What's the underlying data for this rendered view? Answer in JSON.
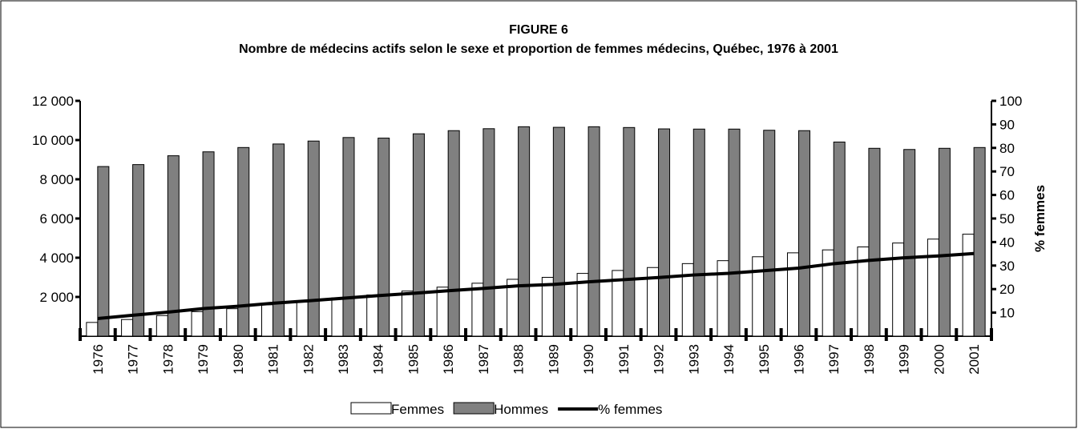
{
  "chart_data": {
    "type": "bar",
    "title": "FIGURE 6",
    "subtitle": "Nombre de médecins actifs selon le sexe et proportion de femmes médecins, Québec, 1976 à 2001",
    "y2_label": "% femmes",
    "categories": [
      "1976",
      "1977",
      "1978",
      "1979",
      "1980",
      "1981",
      "1982",
      "1983",
      "1984",
      "1985",
      "1986",
      "1987",
      "1988",
      "1989",
      "1990",
      "1991",
      "1992",
      "1993",
      "1994",
      "1995",
      "1996",
      "1997",
      "1998",
      "1999",
      "2000",
      "2001"
    ],
    "series": [
      {
        "name": "Femmes",
        "type": "bar",
        "color": "#ffffff",
        "values": [
          700,
          850,
          1050,
          1250,
          1400,
          1600,
          1750,
          1950,
          2100,
          2300,
          2500,
          2700,
          2900,
          3000,
          3200,
          3350,
          3500,
          3700,
          3850,
          4050,
          4250,
          4400,
          4550,
          4750,
          4950,
          5200
        ]
      },
      {
        "name": "Hommes",
        "type": "bar",
        "color": "#808080",
        "values": [
          8650,
          8750,
          9200,
          9400,
          9620,
          9800,
          9950,
          10130,
          10100,
          10320,
          10480,
          10580,
          10680,
          10650,
          10680,
          10640,
          10570,
          10560,
          10560,
          10500,
          10480,
          9900,
          9580,
          9520,
          9580,
          9620
        ]
      },
      {
        "name": "% femmes",
        "type": "line",
        "axis": "y2",
        "color": "#000000",
        "values": [
          7.5,
          8.9,
          10.2,
          11.7,
          12.7,
          14.0,
          15.0,
          16.1,
          17.2,
          18.2,
          19.3,
          20.3,
          21.4,
          22.0,
          23.1,
          24.0,
          24.9,
          26.0,
          26.7,
          27.8,
          28.9,
          30.8,
          32.2,
          33.3,
          34.1,
          35.1
        ]
      }
    ],
    "ylim": [
      0,
      12000
    ],
    "yticks": [
      {
        "value": 2000,
        "label": "2 000"
      },
      {
        "value": 4000,
        "label": "4 000"
      },
      {
        "value": 6000,
        "label": "6 000"
      },
      {
        "value": 8000,
        "label": "8 000"
      },
      {
        "value": 10000,
        "label": "10 000"
      },
      {
        "value": 12000,
        "label": "12 000"
      }
    ],
    "y2lim": [
      0,
      100
    ],
    "y2ticks": [
      10,
      20,
      30,
      40,
      50,
      60,
      70,
      80,
      90,
      100
    ],
    "legend": "bottom",
    "grid": false
  }
}
